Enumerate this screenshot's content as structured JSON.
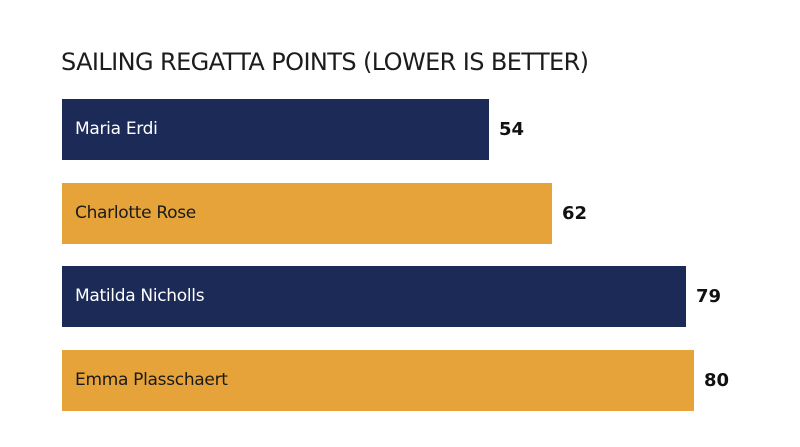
{
  "chart_data": {
    "type": "bar",
    "orientation": "horizontal",
    "title": "SAILING REGATTA POINTS (LOWER IS BETTER)",
    "categories": [
      "Maria Erdi",
      "Charlotte Rose",
      "Matilda Nicholls",
      "Emma Plasschaert"
    ],
    "values": [
      54,
      62,
      79,
      80
    ],
    "value_labels": [
      "54",
      "62",
      "79",
      "80"
    ],
    "bar_colors": [
      "#1b2a57",
      "#e5a33a",
      "#1b2a57",
      "#e5a33a"
    ],
    "label_colors": [
      "#ffffff",
      "#1a1a1a",
      "#ffffff",
      "#1a1a1a"
    ],
    "xlim": [
      0,
      80
    ],
    "grid": false,
    "legend": "none"
  },
  "colors": {
    "navy": "#1b2a57",
    "gold": "#e5a33a",
    "value_text": "#111111"
  }
}
